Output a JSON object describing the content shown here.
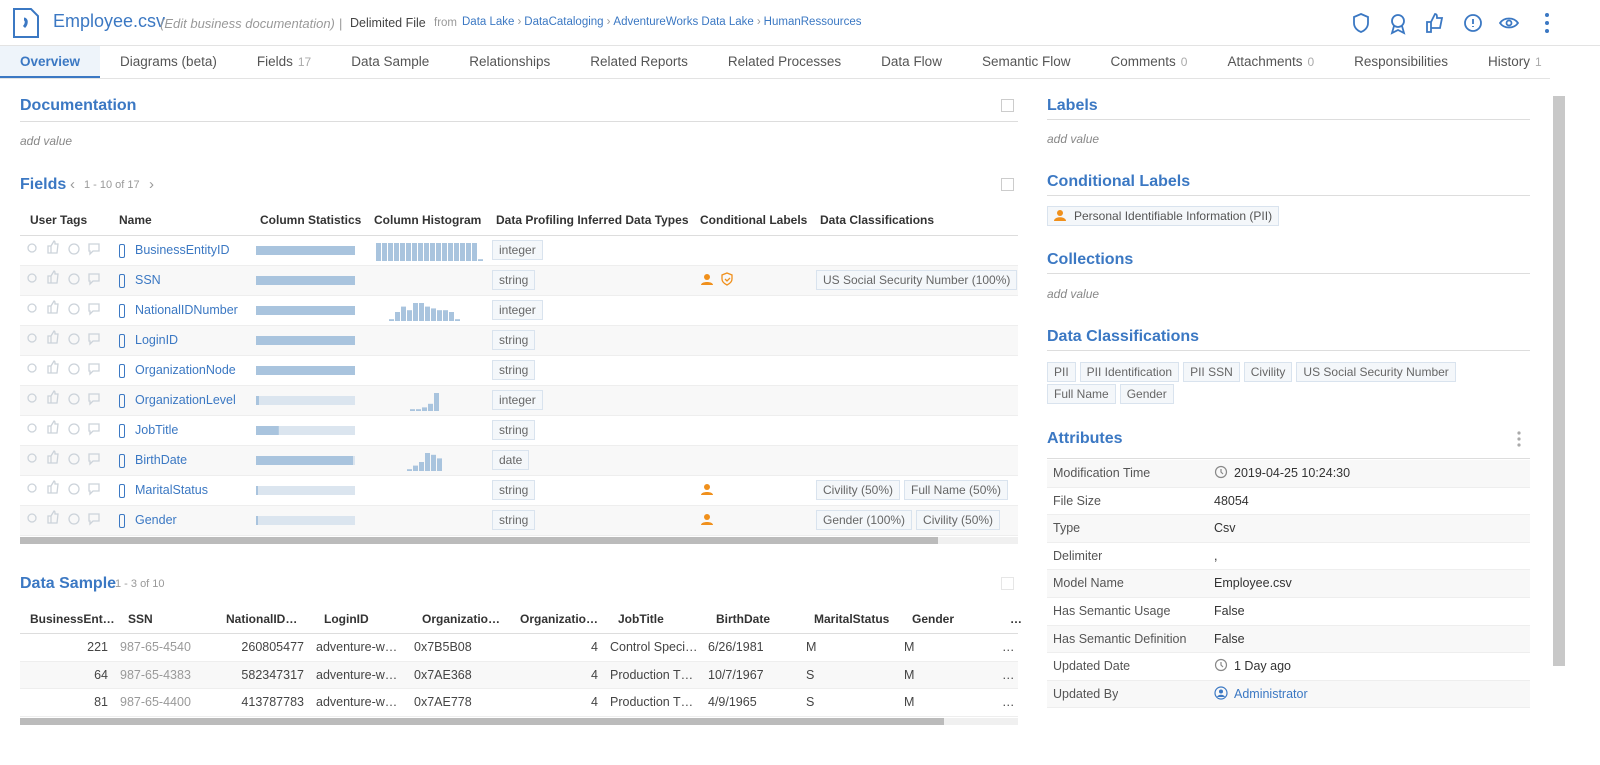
{
  "header": {
    "title": "Employee.csv",
    "edit": "(Edit business documentation)",
    "separator": "|",
    "kind": "Delimited File",
    "from": "from",
    "breadcrumb": [
      "Data Lake",
      "DataCataloging",
      "AdventureWorks Data Lake",
      "HumanRessources"
    ]
  },
  "tabs": [
    {
      "label": "Overview"
    },
    {
      "label": "Diagrams (beta)"
    },
    {
      "label": "Fields",
      "count": 17
    },
    {
      "label": "Data Sample"
    },
    {
      "label": "Relationships"
    },
    {
      "label": "Related Reports"
    },
    {
      "label": "Related Processes"
    },
    {
      "label": "Data Flow"
    },
    {
      "label": "Semantic Flow"
    },
    {
      "label": "Comments",
      "count": 0
    },
    {
      "label": "Attachments",
      "count": 0
    },
    {
      "label": "Responsibilities"
    },
    {
      "label": "History",
      "count": 1
    }
  ],
  "documentation": {
    "title": "Documentation",
    "placeholder": "add value"
  },
  "fields": {
    "title": "Fields",
    "range": "1 - 10 of 17",
    "columns": [
      "User Tags",
      "Name",
      "Column Statistics",
      "Column Histogram",
      "Data Profiling Inferred Data Types",
      "Conditional Labels",
      "Data Classifications"
    ],
    "rows": [
      {
        "name": "BusinessEntityID",
        "stats": 100,
        "histogram": [
          1,
          1,
          1,
          1,
          1,
          1,
          1,
          1,
          1,
          1,
          1,
          1,
          1,
          1,
          1,
          1,
          1,
          0.1
        ],
        "type": "integer"
      },
      {
        "name": "SSN",
        "stats": 100,
        "type": "string",
        "pii": true,
        "shield": true,
        "classifications": [
          "US Social Security Number (100%)"
        ]
      },
      {
        "name": "NationalIDNumber",
        "stats": 100,
        "histogram": [
          0.1,
          0.5,
          0.8,
          0.6,
          1,
          1,
          0.8,
          0.7,
          0.6,
          0.6,
          0.5,
          0.1
        ],
        "type": "integer"
      },
      {
        "name": "LoginID",
        "stats": 100,
        "type": "string"
      },
      {
        "name": "OrganizationNode",
        "stats": 100,
        "type": "string"
      },
      {
        "name": "OrganizationLevel",
        "stats": 3,
        "histogram": [
          0.1,
          0.1,
          0.2,
          0.4,
          1
        ],
        "type": "integer"
      },
      {
        "name": "JobTitle",
        "stats": 23,
        "type": "string"
      },
      {
        "name": "BirthDate",
        "stats": 98,
        "histogram": [
          0.1,
          0.3,
          0.5,
          1,
          0.9,
          0.7
        ],
        "type": "date"
      },
      {
        "name": "MaritalStatus",
        "stats": 2,
        "type": "string",
        "pii": true,
        "classifications": [
          "Civility (50%)",
          "Full Name (50%)"
        ]
      },
      {
        "name": "Gender",
        "stats": 2,
        "type": "string",
        "pii": true,
        "classifications": [
          "Gender (100%)",
          "Civility (50%)"
        ]
      }
    ]
  },
  "data_sample": {
    "title": "Data Sample",
    "range": "1 - 3 of 10",
    "columns": [
      "BusinessEnt…",
      "SSN",
      "NationalID…",
      "LoginID",
      "Organizatio…",
      "Organizatio…",
      "JobTitle",
      "BirthDate",
      "MaritalStatus",
      "Gender",
      "…"
    ],
    "rows": [
      [
        221,
        "987-65-4540",
        260805477,
        "adventure-w…",
        "0x7B5B08",
        4,
        "Control Speci…",
        "6/26/1981",
        "M",
        "M",
        "…"
      ],
      [
        64,
        "987-65-4383",
        582347317,
        "adventure-w…",
        "0x7AE368",
        4,
        "Production T…",
        "10/7/1967",
        "S",
        "M",
        "…"
      ],
      [
        81,
        "987-65-4400",
        413787783,
        "adventure-w…",
        "0x7AE778",
        4,
        "Production T…",
        "4/9/1965",
        "S",
        "M",
        "…"
      ]
    ]
  },
  "labels": {
    "title": "Labels",
    "placeholder": "add value"
  },
  "conditional_labels": {
    "title": "Conditional Labels",
    "items": [
      "Personal Identifiable Information (PII)"
    ]
  },
  "collections": {
    "title": "Collections",
    "placeholder": "add value"
  },
  "data_classifications": {
    "title": "Data Classifications",
    "items": [
      "PII",
      "PII Identification",
      "PII SSN",
      "Civility",
      "US Social Security Number",
      "Full Name",
      "Gender"
    ]
  },
  "attributes": {
    "title": "Attributes",
    "rows": [
      {
        "key": "Modification Time",
        "value": "2019-04-25 10:24:30",
        "icon": "clock"
      },
      {
        "key": "File Size",
        "value": 48054
      },
      {
        "key": "Type",
        "value": "Csv"
      },
      {
        "key": "Delimiter",
        "value": ","
      },
      {
        "key": "Model Name",
        "value": "Employee.csv"
      },
      {
        "key": "Has Semantic Usage",
        "value": "False"
      },
      {
        "key": "Has Semantic Definition",
        "value": "False"
      },
      {
        "key": "Updated Date",
        "value": "1 Day ago",
        "icon": "clock"
      },
      {
        "key": "Updated By",
        "value": "Administrator",
        "icon": "user"
      }
    ]
  }
}
